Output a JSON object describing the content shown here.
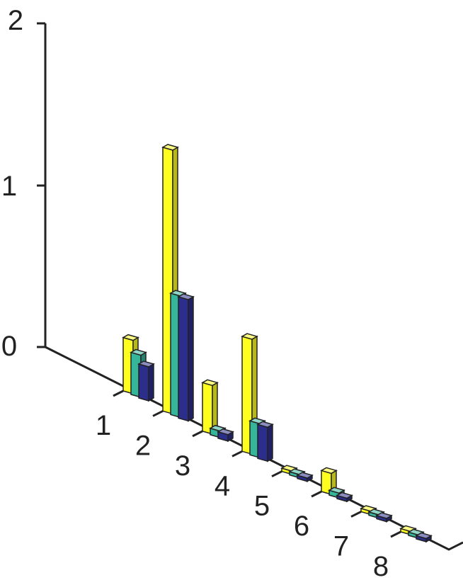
{
  "chart_data": {
    "type": "bar",
    "subtype": "3d-grouped",
    "title": "",
    "xlabel": "",
    "ylabel": "",
    "zlim": [
      0,
      2
    ],
    "z_ticks": [
      "0",
      "1",
      "2"
    ],
    "grid": false,
    "legend": "none",
    "categories": [
      "1",
      "2",
      "3",
      "4",
      "5",
      "6",
      "7",
      "8"
    ],
    "series": [
      {
        "color": "#ffff1f",
        "values": [
          0.33,
          1.63,
          0.3,
          0.71,
          0.02,
          0.13,
          0.02,
          0.02
        ]
      },
      {
        "color": "#35b59a",
        "values": [
          0.26,
          0.75,
          0.04,
          0.21,
          0.02,
          0.03,
          0.02,
          0.02
        ]
      },
      {
        "color": "#2c2e8c",
        "values": [
          0.21,
          0.75,
          0.04,
          0.21,
          0.02,
          0.02,
          0.02,
          0.02
        ]
      }
    ]
  }
}
